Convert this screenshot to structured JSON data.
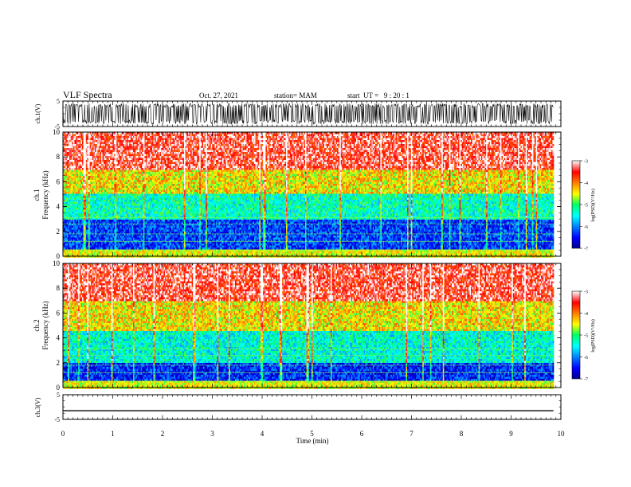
{
  "header": {
    "title": "VLF Spectra",
    "date": "Oct. 27, 2021",
    "station": "station= MAM",
    "start_ut": "start  UT =   9 : 20 : 1"
  },
  "chart_data": [
    {
      "type": "line",
      "panel": "ch1-waveform",
      "ylabel": "ch.1(V)",
      "ylim": [
        -5,
        5
      ],
      "yticks": [
        "5",
        "-5"
      ],
      "xlim": [
        0,
        10
      ],
      "signal": "dense oscillation between approximately -4 and 4 V throughout 0–9.85 min"
    },
    {
      "type": "heatmap",
      "panel": "ch1-spectrogram",
      "ylabel": "ch.1",
      "ylabel2": "Frequency (kHz)",
      "ylim": [
        0,
        10
      ],
      "yticks": [
        "0",
        "2",
        "4",
        "6",
        "8",
        "10"
      ],
      "xlim": [
        0,
        10
      ],
      "data_extent_min": 9.85,
      "colorbar": {
        "label": "log(PSD)(V²/Hz)",
        "range": [
          -7,
          -3
        ],
        "ticks": [
          "-3",
          "-4",
          "-5",
          "-6",
          "-7"
        ]
      },
      "bands_kHz": [
        {
          "from": 0,
          "to": 3,
          "level": -6.3
        },
        {
          "from": 3,
          "to": 5,
          "level": -5.3
        },
        {
          "from": 5,
          "to": 7,
          "level": -4.4
        },
        {
          "from": 7,
          "to": 10,
          "level": -3.4
        }
      ]
    },
    {
      "type": "heatmap",
      "panel": "ch2-spectrogram",
      "ylabel": "ch.2",
      "ylabel2": "Frequency (kHz)",
      "ylim": [
        0,
        10
      ],
      "yticks": [
        "0",
        "2",
        "4",
        "6",
        "8",
        "10"
      ],
      "xlim": [
        0,
        10
      ],
      "data_extent_min": 9.85,
      "colorbar": {
        "label": "log(PSD)(V²/Hz)",
        "range": [
          -7,
          -3
        ],
        "ticks": [
          "-3",
          "-4",
          "-5",
          "-6",
          "-7"
        ]
      },
      "bands_kHz": [
        {
          "from": 0,
          "to": 2,
          "level": -6.4
        },
        {
          "from": 2,
          "to": 4.5,
          "level": -5.4
        },
        {
          "from": 4.5,
          "to": 7,
          "level": -4.4
        },
        {
          "from": 7,
          "to": 10,
          "level": -3.4
        }
      ]
    },
    {
      "type": "line",
      "panel": "ch3-waveform",
      "ylabel": "ch.3(V)",
      "ylim": [
        -5,
        5
      ],
      "yticks": [
        "5",
        "-5"
      ],
      "xlim": [
        0,
        10
      ],
      "x": [
        0,
        9.85
      ],
      "values": [
        -1.5,
        -1.5
      ]
    }
  ],
  "xaxis": {
    "label": "Time (min)",
    "ticks": [
      "0",
      "1",
      "2",
      "3",
      "4",
      "5",
      "6",
      "7",
      "8",
      "9",
      "10"
    ]
  },
  "colors": {
    "spectro_low": "#00008f",
    "spectro_high": "#ff0000",
    "frame": "#000000"
  }
}
